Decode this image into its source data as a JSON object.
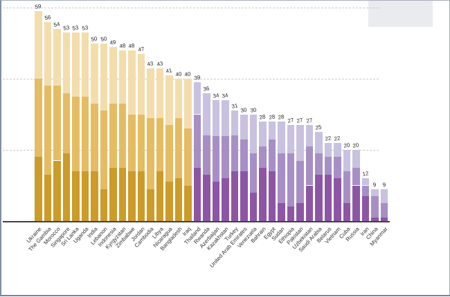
{
  "window": {
    "background": "#ffffff",
    "border_color": "#828ca9",
    "top_right_panel_color": "#e9ebee"
  },
  "chart_data": {
    "type": "bar",
    "stacked": true,
    "title": "",
    "xlabel": "",
    "ylabel": "",
    "ylim": [
      0,
      60
    ],
    "gridline_values": [
      20,
      40,
      60
    ],
    "grid_style": "dashed",
    "legend": "none",
    "value_labels": "above bars",
    "segment_order": [
      "bottom",
      "middle",
      "top"
    ],
    "groups": {
      "gold": {
        "bottom": "#cc9b28",
        "middle": "#e5bc62",
        "top": "#f4ddad"
      },
      "purple": {
        "bottom": "#8d56a5",
        "middle": "#a78fc5",
        "top": "#c8c1df"
      }
    },
    "bars": [
      {
        "label": "Ukraine",
        "group": "gold",
        "total": 59,
        "segments": [
          18,
          22,
          19
        ]
      },
      {
        "label": "The Gambia",
        "group": "gold",
        "total": 56,
        "segments": [
          13,
          25,
          18
        ]
      },
      {
        "label": "Morocco",
        "group": "gold",
        "total": 54,
        "segments": [
          17,
          21,
          16
        ]
      },
      {
        "label": "Singapore",
        "group": "gold",
        "total": 53,
        "segments": [
          19,
          17,
          17
        ]
      },
      {
        "label": "Sri Lanka",
        "group": "gold",
        "total": 53,
        "segments": [
          14,
          21,
          18
        ]
      },
      {
        "label": "Uganda",
        "group": "gold",
        "total": 53,
        "segments": [
          14,
          21,
          18
        ]
      },
      {
        "label": "India",
        "group": "gold",
        "total": 50,
        "segments": [
          14,
          19,
          17
        ]
      },
      {
        "label": "Lebanon",
        "group": "gold",
        "total": 50,
        "segments": [
          9,
          22,
          19
        ]
      },
      {
        "label": "Indonesia",
        "group": "gold",
        "total": 49,
        "segments": [
          15,
          18,
          16
        ]
      },
      {
        "label": "Kyrgyzstan",
        "group": "gold",
        "total": 48,
        "segments": [
          15,
          18,
          15
        ]
      },
      {
        "label": "Zimbabwe",
        "group": "gold",
        "total": 48,
        "segments": [
          14,
          16,
          18
        ]
      },
      {
        "label": "Jordan",
        "group": "gold",
        "total": 47,
        "segments": [
          14,
          16,
          17
        ]
      },
      {
        "label": "Cambodia",
        "group": "gold",
        "total": 43,
        "segments": [
          9,
          20,
          14
        ]
      },
      {
        "label": "Libya",
        "group": "gold",
        "total": 43,
        "segments": [
          14,
          15,
          14
        ]
      },
      {
        "label": "Nicaragua",
        "group": "gold",
        "total": 41,
        "segments": [
          11,
          16,
          14
        ]
      },
      {
        "label": "Bangladesh",
        "group": "gold",
        "total": 40,
        "segments": [
          12,
          17,
          11
        ]
      },
      {
        "label": "Iraq",
        "group": "gold",
        "total": 40,
        "segments": [
          10,
          16,
          14
        ]
      },
      {
        "label": "Thailand",
        "group": "purple",
        "total": 39,
        "segments": [
          15,
          15,
          9
        ]
      },
      {
        "label": "Rwanda",
        "group": "purple",
        "total": 36,
        "segments": [
          13,
          11,
          12
        ]
      },
      {
        "label": "Azerbaijan",
        "group": "purple",
        "total": 34,
        "segments": [
          11,
          13,
          10
        ]
      },
      {
        "label": "Kazakhstan",
        "group": "purple",
        "total": 34,
        "segments": [
          12,
          12,
          10
        ]
      },
      {
        "label": "Turkey",
        "group": "purple",
        "total": 31,
        "segments": [
          14,
          10,
          7
        ]
      },
      {
        "label": "United Arab Emirates",
        "group": "purple",
        "total": 30,
        "segments": [
          14,
          9,
          7
        ]
      },
      {
        "label": "Venezuela",
        "group": "purple",
        "total": 30,
        "segments": [
          8,
          11,
          11
        ]
      },
      {
        "label": "Bahrain",
        "group": "purple",
        "total": 28,
        "segments": [
          15,
          6,
          7
        ]
      },
      {
        "label": "Egypt",
        "group": "purple",
        "total": 28,
        "segments": [
          14,
          9,
          5
        ]
      },
      {
        "label": "Sudan",
        "group": "purple",
        "total": 28,
        "segments": [
          5,
          14,
          9
        ]
      },
      {
        "label": "Ethiopia",
        "group": "purple",
        "total": 27,
        "segments": [
          4,
          15,
          8
        ]
      },
      {
        "label": "Pakistan",
        "group": "purple",
        "total": 27,
        "segments": [
          5,
          12,
          10
        ]
      },
      {
        "label": "Uzbekistan",
        "group": "purple",
        "total": 27,
        "segments": [
          10,
          11,
          6
        ]
      },
      {
        "label": "Saudi Arabia",
        "group": "purple",
        "total": 25,
        "segments": [
          13,
          6,
          6
        ]
      },
      {
        "label": "Belarus",
        "group": "purple",
        "total": 22,
        "segments": [
          13,
          5,
          4
        ]
      },
      {
        "label": "Vietnam",
        "group": "purple",
        "total": 22,
        "segments": [
          12,
          6,
          4
        ]
      },
      {
        "label": "Cuba",
        "group": "purple",
        "total": 20,
        "segments": [
          5,
          9,
          6
        ]
      },
      {
        "label": "Russia",
        "group": "purple",
        "total": 20,
        "segments": [
          10,
          5,
          5
        ]
      },
      {
        "label": "Iran",
        "group": "purple",
        "total": 12,
        "segments": [
          7,
          3,
          2
        ]
      },
      {
        "label": "China",
        "group": "purple",
        "total": 9,
        "segments": [
          1,
          6,
          2
        ]
      },
      {
        "label": "Myanmar",
        "group": "purple",
        "total": 9,
        "segments": [
          1,
          4,
          4
        ]
      }
    ]
  }
}
